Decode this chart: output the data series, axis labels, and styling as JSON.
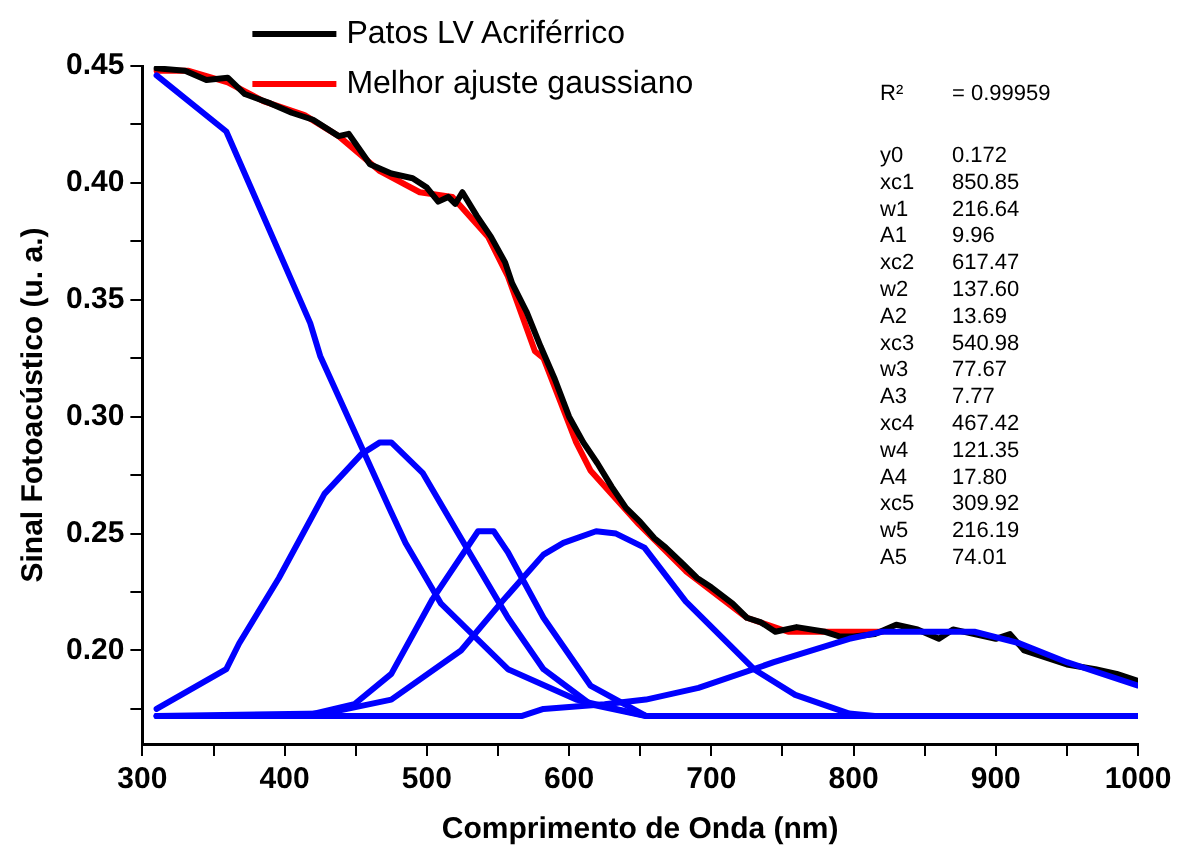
{
  "chart_data": {
    "type": "line",
    "xlabel": "Comprimento de Onda (nm)",
    "ylabel": "Sinal Fotoacústico (u. a.)",
    "xlim": [
      300,
      1000
    ],
    "ylim": [
      0.16,
      0.45
    ],
    "xticks": [
      300,
      {
        "value": 350,
        "label": null
      },
      400,
      {
        "value": 450,
        "label": null
      },
      500,
      {
        "value": 550,
        "label": null
      },
      600,
      {
        "value": 650,
        "label": null
      },
      700,
      {
        "value": 750,
        "label": null
      },
      800,
      {
        "value": 850,
        "label": null
      },
      900,
      {
        "value": 950,
        "label": null
      },
      1000
    ],
    "yticks": [
      {
        "value": 0.175,
        "label": null
      },
      {
        "value": 0.2,
        "label": "0.20"
      },
      {
        "value": 0.225,
        "label": null
      },
      {
        "value": 0.25,
        "label": "0.25"
      },
      {
        "value": 0.275,
        "label": null
      },
      {
        "value": 0.3,
        "label": "0.30"
      },
      {
        "value": 0.325,
        "label": null
      },
      {
        "value": 0.35,
        "label": "0.35"
      },
      {
        "value": 0.375,
        "label": null
      },
      {
        "value": 0.4,
        "label": "0.40"
      },
      {
        "value": 0.425,
        "label": null
      },
      {
        "value": 0.45,
        "label": "0.45"
      }
    ],
    "grid": false,
    "legend": "top",
    "marker": "none",
    "line_style": "solid",
    "series": [
      {
        "color": "#0000ff",
        "x": [
          310,
          359,
          418,
          425,
          475,
          485,
          510,
          557,
          605,
          654,
          700,
          800,
          900,
          1000
        ],
        "values": [
          0.446,
          0.422,
          0.34,
          0.326,
          0.259,
          0.246,
          0.22,
          0.192,
          0.179,
          0.172,
          0.172,
          0.172,
          0.172,
          0.172
        ]
      },
      {
        "color": "#0000ff",
        "x": [
          310,
          359,
          368,
          396,
          428,
          454,
          467,
          475,
          497,
          524,
          557,
          582,
          615,
          654,
          700,
          800,
          900,
          1000
        ],
        "values": [
          0.175,
          0.192,
          0.203,
          0.231,
          0.267,
          0.284,
          0.289,
          0.289,
          0.276,
          0.248,
          0.214,
          0.192,
          0.177,
          0.172,
          0.172,
          0.172,
          0.172,
          0.172
        ]
      },
      {
        "color": "#0000ff",
        "x": [
          310,
          414,
          449,
          475,
          504,
          536,
          547,
          557,
          582,
          615,
          654,
          700,
          800,
          900,
          1000
        ],
        "values": [
          0.172,
          0.172,
          0.177,
          0.19,
          0.222,
          0.251,
          0.251,
          0.242,
          0.214,
          0.185,
          0.172,
          0.172,
          0.172,
          0.172,
          0.172
        ]
      },
      {
        "color": "#0000ff",
        "x": [
          310,
          428,
          475,
          524,
          553,
          582,
          596,
          619,
          633,
          653,
          682,
          730,
          759,
          797,
          815,
          900,
          1000
        ],
        "values": [
          0.172,
          0.173,
          0.179,
          0.2,
          0.221,
          0.241,
          0.246,
          0.251,
          0.25,
          0.244,
          0.221,
          0.192,
          0.181,
          0.173,
          0.172,
          0.172,
          0.172
        ]
      },
      {
        "color": "#0000ff",
        "x": [
          310,
          567,
          582,
          625,
          654,
          691,
          744,
          797,
          820,
          885,
          917,
          950,
          1000
        ],
        "values": [
          0.172,
          0.172,
          0.175,
          0.177,
          0.179,
          0.184,
          0.195,
          0.205,
          0.208,
          0.208,
          0.203,
          0.195,
          0.185
        ]
      },
      {
        "name": "Patos LV Acriférrico",
        "color": "#000000",
        "x": [
          310,
          330,
          345,
          360,
          372,
          390,
          405,
          420,
          438,
          445,
          460,
          475,
          490,
          500,
          508,
          515,
          520,
          525,
          535,
          545,
          555,
          560,
          570,
          580,
          590,
          600,
          610,
          620,
          630,
          640,
          650,
          660,
          668,
          680,
          690,
          700,
          715,
          725,
          735,
          745,
          760,
          780,
          790,
          800,
          815,
          830,
          845,
          860,
          870,
          885,
          900,
          910,
          920,
          935,
          950,
          970,
          985,
          1000
        ],
        "values": [
          0.449,
          0.448,
          0.444,
          0.445,
          0.438,
          0.434,
          0.43,
          0.427,
          0.42,
          0.421,
          0.408,
          0.404,
          0.402,
          0.398,
          0.392,
          0.394,
          0.391,
          0.396,
          0.386,
          0.377,
          0.366,
          0.357,
          0.345,
          0.33,
          0.316,
          0.3,
          0.289,
          0.28,
          0.27,
          0.261,
          0.255,
          0.248,
          0.244,
          0.237,
          0.231,
          0.227,
          0.22,
          0.214,
          0.212,
          0.208,
          0.21,
          0.208,
          0.206,
          0.206,
          0.207,
          0.211,
          0.209,
          0.205,
          0.209,
          0.207,
          0.205,
          0.207,
          0.2,
          0.197,
          0.194,
          0.192,
          0.19,
          0.187
        ]
      },
      {
        "name": "Melhor ajuste gaussiano",
        "color": "#ff0000",
        "x": [
          310,
          332,
          360,
          385,
          414,
          438,
          467,
          495,
          518,
          543,
          557,
          576,
          582,
          605,
          615,
          649,
          682,
          725,
          754,
          820
        ],
        "values": [
          0.448,
          0.448,
          0.443,
          0.435,
          0.429,
          0.42,
          0.405,
          0.396,
          0.394,
          0.377,
          0.36,
          0.328,
          0.325,
          0.289,
          0.277,
          0.254,
          0.234,
          0.214,
          0.208,
          0.208
        ]
      }
    ],
    "annotations": [
      "R² = 0.99959",
      "y0 0.172",
      "xc1 850.85",
      "w1 216.64",
      "A1 9.96",
      "xc2 617.47",
      "w2 137.60",
      "A2 13.69",
      "xc3 540.98",
      "w3 77.67",
      "A3 7.77",
      "xc4 467.42",
      "w4 121.35",
      "A4 17.80",
      "xc5 309.92",
      "w5 216.19",
      "A5 74.01"
    ]
  }
}
